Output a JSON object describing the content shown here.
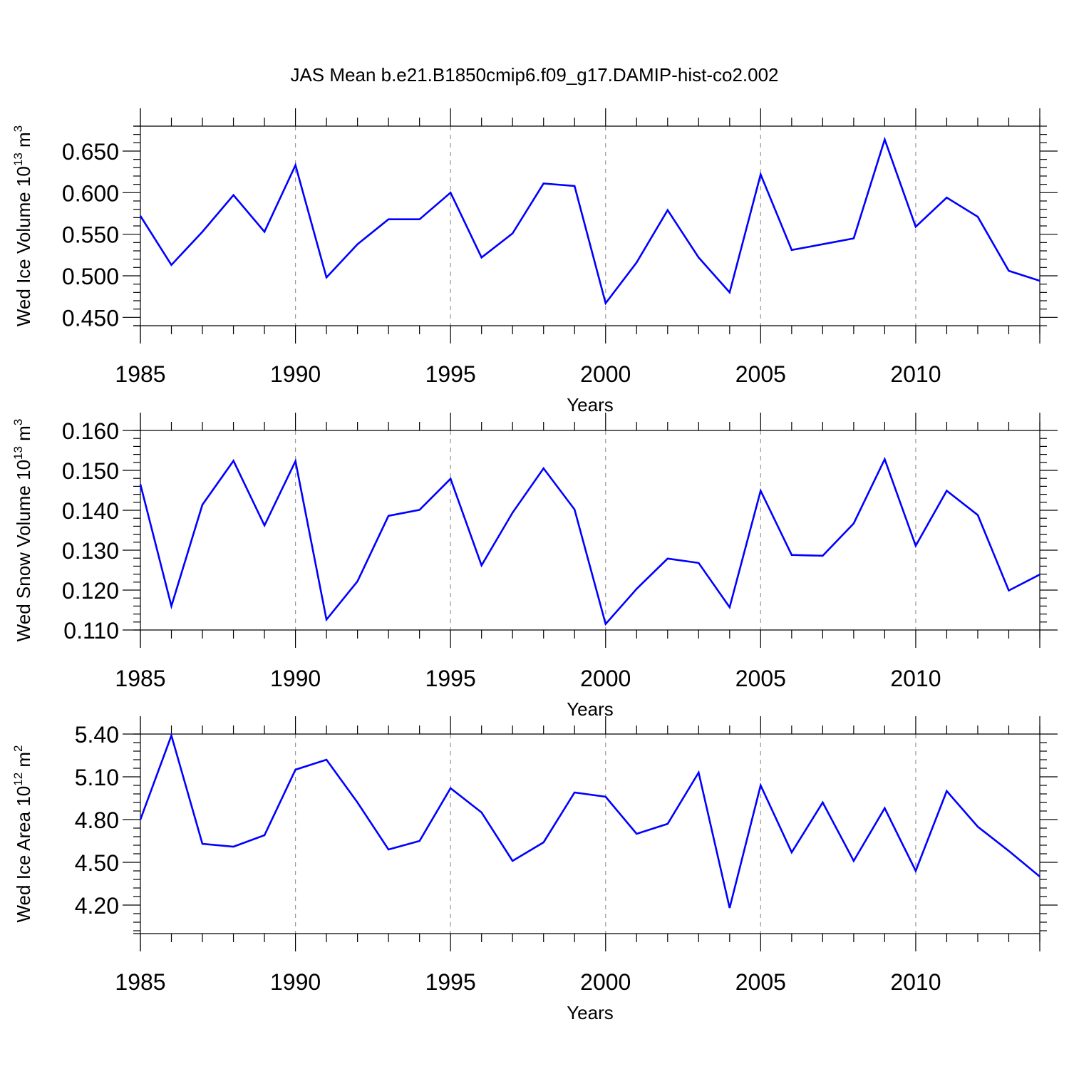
{
  "chart_data": [
    {
      "type": "line",
      "title": "JAS Mean b.e21.B1850cmip6.f09_g17.DAMIP-hist-co2.002",
      "ylabel": "Wed Ice Volume 10",
      "ylabel_exp": "13",
      "ylabel_unit": " m",
      "ylabel_unit_exp": "3",
      "xlabel": "Years",
      "xlim": [
        1985,
        2014
      ],
      "ylim": [
        0.44,
        0.68
      ],
      "ytick_values": [
        0.45,
        0.5,
        0.55,
        0.6,
        0.65
      ],
      "ytick_labels": [
        "0.450",
        "0.500",
        "0.550",
        "0.600",
        "0.650"
      ],
      "xtick_values": [
        1985,
        1990,
        1995,
        2000,
        2005,
        2010
      ],
      "xtick_labels": [
        "1985",
        "1990",
        "1995",
        "2000",
        "2005",
        "2010"
      ],
      "grid": "dashed vertical at major x ticks",
      "color": "#0000ff",
      "x": [
        1985,
        1986,
        1987,
        1988,
        1989,
        1990,
        1991,
        1992,
        1993,
        1994,
        1995,
        1996,
        1997,
        1998,
        1999,
        2000,
        2001,
        2002,
        2003,
        2004,
        2005,
        2006,
        2007,
        2008,
        2009,
        2010,
        2011,
        2012,
        2013,
        2014
      ],
      "values": [
        0.572,
        0.513,
        0.553,
        0.597,
        0.553,
        0.633,
        0.498,
        0.538,
        0.568,
        0.568,
        0.6,
        0.522,
        0.551,
        0.611,
        0.608,
        0.467,
        0.516,
        0.579,
        0.522,
        0.48,
        0.622,
        0.531,
        0.538,
        0.545,
        0.664,
        0.559,
        0.594,
        0.571,
        0.506,
        0.494
      ]
    },
    {
      "type": "line",
      "title": "",
      "ylabel": "Wed Snow Volume 10",
      "ylabel_exp": "13",
      "ylabel_unit": " m",
      "ylabel_unit_exp": "3",
      "xlabel": "Years",
      "xlim": [
        1985,
        2014
      ],
      "ylim": [
        0.11,
        0.16
      ],
      "ytick_values": [
        0.11,
        0.12,
        0.13,
        0.14,
        0.15,
        0.16
      ],
      "ytick_labels": [
        "0.110",
        "0.120",
        "0.130",
        "0.140",
        "0.150",
        "0.160"
      ],
      "xtick_values": [
        1985,
        1990,
        1995,
        2000,
        2005,
        2010
      ],
      "xtick_labels": [
        "1985",
        "1990",
        "1995",
        "2000",
        "2005",
        "2010"
      ],
      "grid": "dashed vertical at major x ticks",
      "color": "#0000ff",
      "x": [
        1985,
        1986,
        1987,
        1988,
        1989,
        1990,
        1991,
        1992,
        1993,
        1994,
        1995,
        1996,
        1997,
        1998,
        1999,
        2000,
        2001,
        2002,
        2003,
        2004,
        2005,
        2006,
        2007,
        2008,
        2009,
        2010,
        2011,
        2012,
        2013,
        2014
      ],
      "values": [
        0.1465,
        0.116,
        0.1414,
        0.1524,
        0.1362,
        0.1523,
        0.1126,
        0.1222,
        0.1386,
        0.1401,
        0.1479,
        0.1262,
        0.1394,
        0.1505,
        0.1402,
        0.1115,
        0.1203,
        0.1279,
        0.1268,
        0.1157,
        0.1449,
        0.1288,
        0.1286,
        0.1367,
        0.1528,
        0.1311,
        0.1449,
        0.1388,
        0.1199,
        0.1239
      ]
    },
    {
      "type": "line",
      "title": "",
      "ylabel": "Wed Ice Area 10",
      "ylabel_exp": "12",
      "ylabel_unit": " m",
      "ylabel_unit_exp": "2",
      "xlabel": "Years",
      "xlim": [
        1985,
        2014
      ],
      "ylim": [
        4.0,
        5.4
      ],
      "ytick_values": [
        4.2,
        4.5,
        4.8,
        5.1,
        5.4
      ],
      "ytick_labels": [
        "4.20",
        "4.50",
        "4.80",
        "5.10",
        "5.40"
      ],
      "xtick_values": [
        1985,
        1990,
        1995,
        2000,
        2005,
        2010
      ],
      "xtick_labels": [
        "1985",
        "1990",
        "1995",
        "2000",
        "2005",
        "2010"
      ],
      "grid": "dashed vertical at major x ticks",
      "color": "#0000ff",
      "x": [
        1985,
        1986,
        1987,
        1988,
        1989,
        1990,
        1991,
        1992,
        1993,
        1994,
        1995,
        1996,
        1997,
        1998,
        1999,
        2000,
        2001,
        2002,
        2003,
        2004,
        2005,
        2006,
        2007,
        2008,
        2009,
        2010,
        2011,
        2012,
        2013,
        2014
      ],
      "values": [
        4.8,
        5.39,
        4.63,
        4.61,
        4.69,
        5.15,
        5.22,
        4.92,
        4.59,
        4.65,
        5.02,
        4.85,
        4.51,
        4.64,
        4.99,
        4.96,
        4.7,
        4.77,
        5.13,
        4.18,
        5.04,
        4.57,
        4.92,
        4.51,
        4.88,
        4.44,
        5.0,
        4.75,
        4.58,
        4.4
      ]
    }
  ]
}
